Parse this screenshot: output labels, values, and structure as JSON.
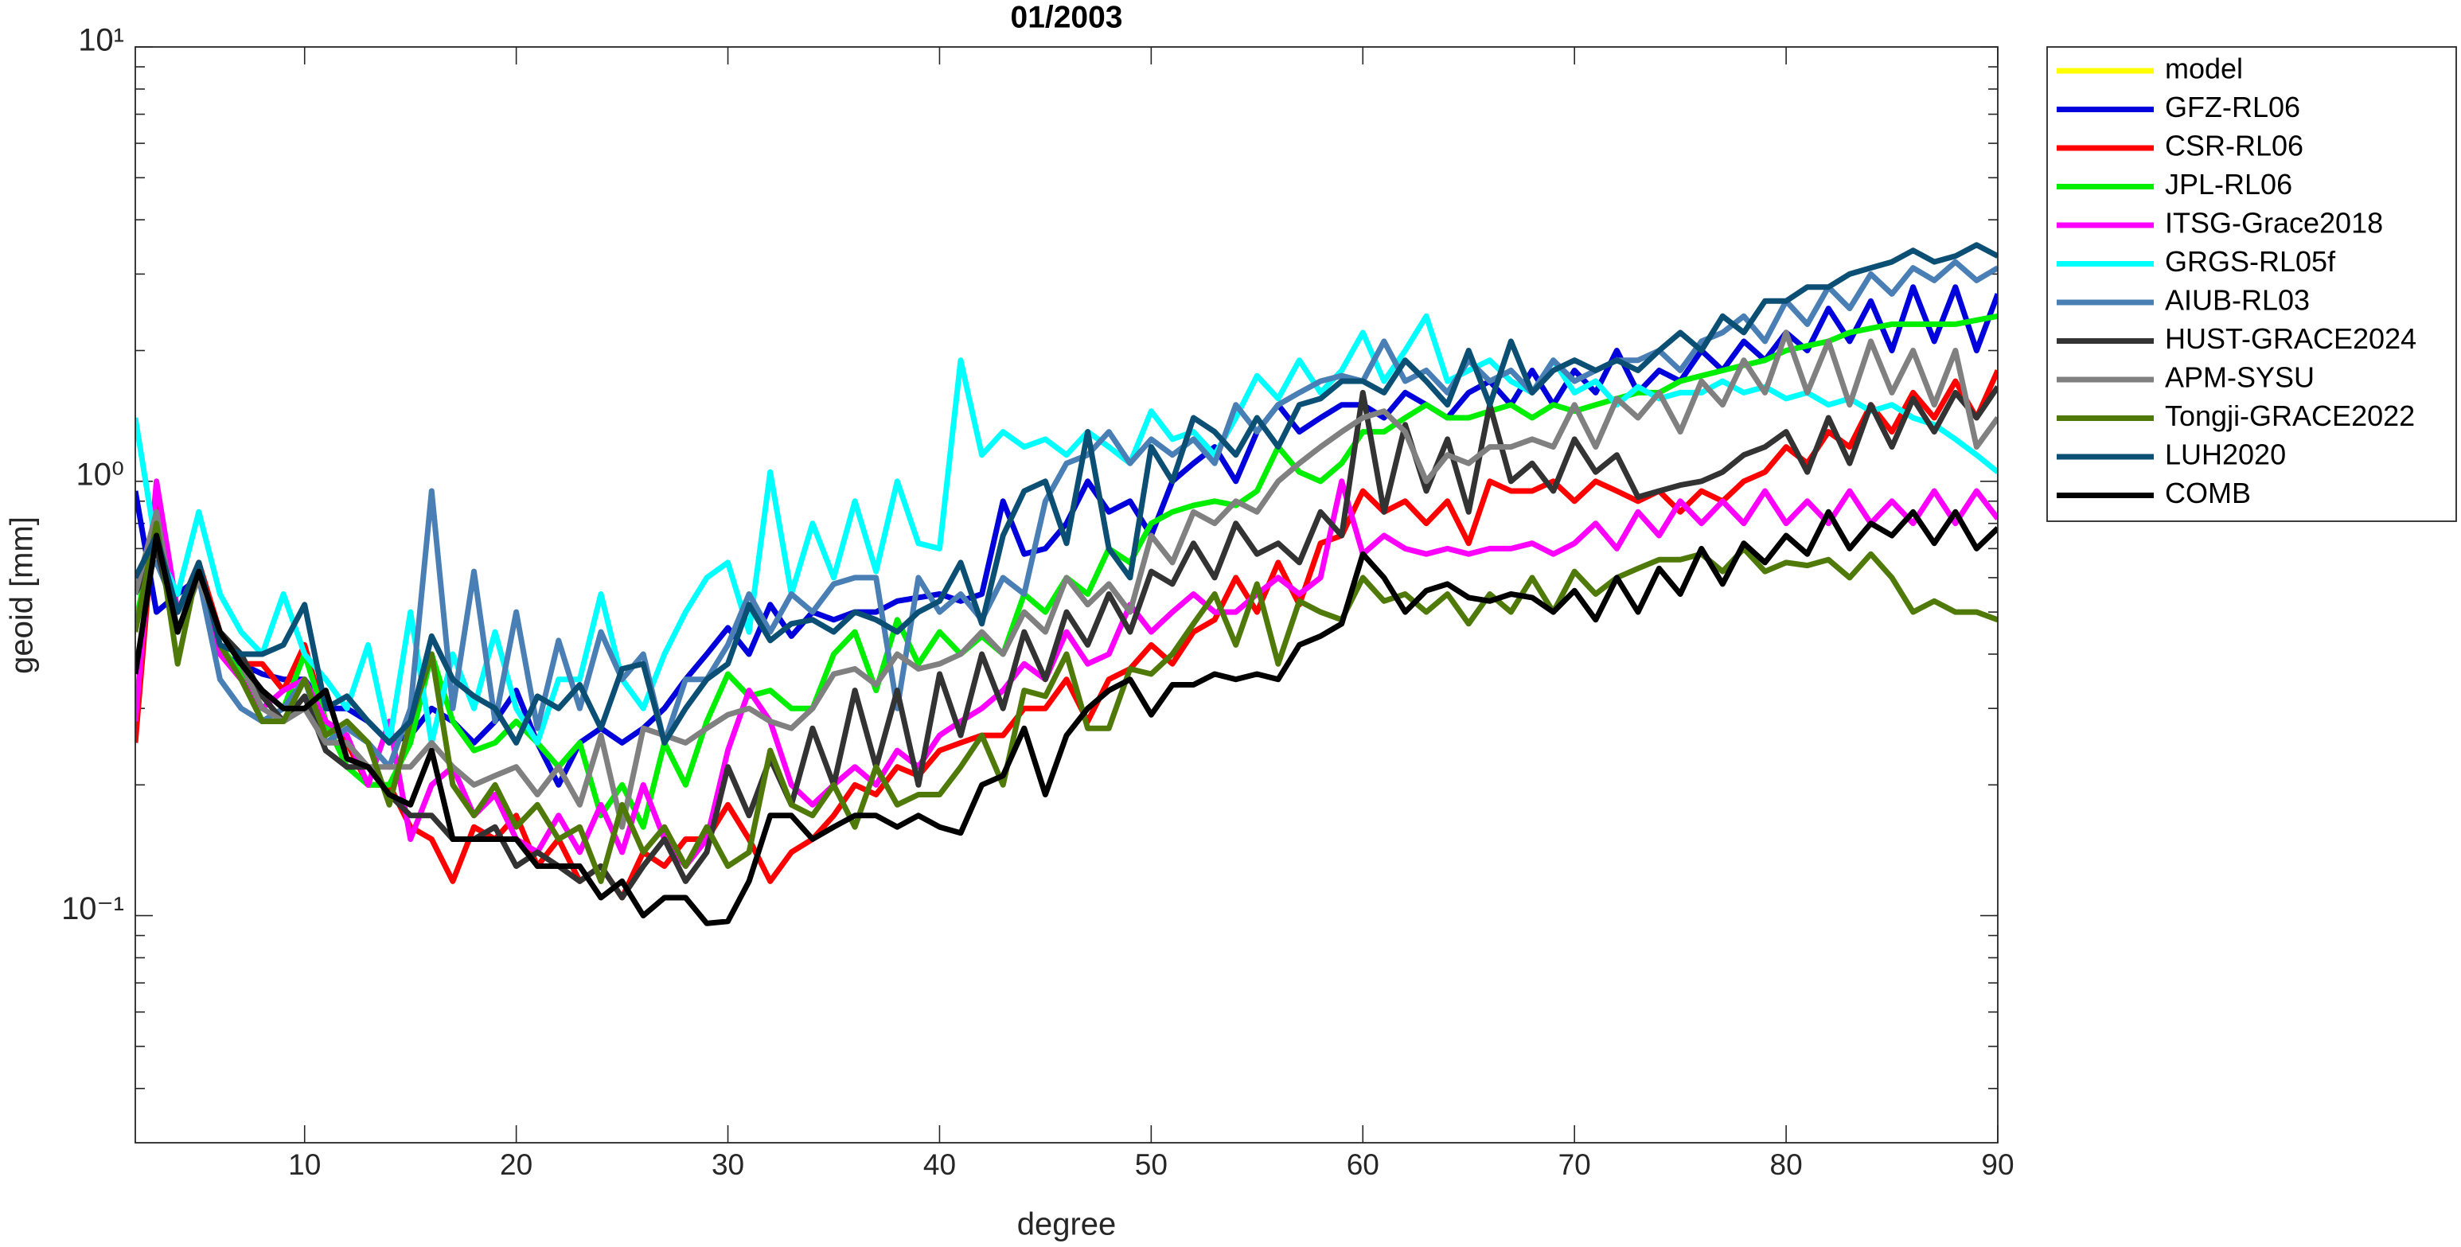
{
  "chart_data": {
    "type": "line",
    "title": "01/2003",
    "x_label": "degree",
    "y_label": "geoid [mm]",
    "log_y": true,
    "grid": false,
    "xlim": [
      2,
      90
    ],
    "xticks": [
      10,
      20,
      30,
      40,
      50,
      60,
      70,
      80,
      90
    ],
    "ylim": [
      0.03,
      10
    ],
    "yticks": [
      {
        "value": 0.1,
        "label": "10⁻¹"
      },
      {
        "value": 1,
        "label": "10⁰"
      },
      {
        "value": 10,
        "label": "10¹"
      }
    ],
    "yminorticks": [
      0.04,
      0.05,
      0.06,
      0.07,
      0.08,
      0.09,
      0.2,
      0.3,
      0.4,
      0.5,
      0.6,
      0.7,
      0.8,
      0.9,
      2,
      3,
      4,
      5,
      6,
      7,
      8,
      9
    ],
    "legend": "outside-right",
    "x": [
      2,
      3,
      4,
      5,
      6,
      7,
      8,
      9,
      10,
      11,
      12,
      13,
      14,
      15,
      16,
      17,
      18,
      19,
      20,
      21,
      22,
      23,
      24,
      25,
      26,
      27,
      28,
      29,
      30,
      31,
      32,
      33,
      34,
      35,
      36,
      37,
      38,
      39,
      40,
      41,
      42,
      43,
      44,
      45,
      46,
      47,
      48,
      49,
      50,
      51,
      52,
      53,
      54,
      55,
      56,
      57,
      58,
      59,
      60,
      61,
      62,
      63,
      64,
      65,
      66,
      67,
      68,
      69,
      70,
      71,
      72,
      73,
      74,
      75,
      76,
      77,
      78,
      79,
      80,
      81,
      82,
      83,
      84,
      85,
      86,
      87,
      88,
      89,
      90
    ],
    "series": [
      {
        "name": "model",
        "color": "#ffff00",
        "values": [
          null,
          null,
          null,
          null,
          null,
          null,
          null,
          null,
          null,
          null,
          null,
          null,
          null,
          null,
          null,
          null,
          null,
          null,
          null,
          null,
          null,
          null,
          null,
          null,
          null,
          null,
          null,
          null,
          null,
          null,
          null,
          null,
          null,
          null,
          null,
          null,
          null,
          null,
          null,
          null,
          null,
          null,
          null,
          null,
          null,
          null,
          null,
          null,
          null,
          null,
          null,
          null,
          null,
          null,
          null,
          null,
          null,
          null,
          null,
          null,
          null,
          null,
          null,
          null,
          null,
          null,
          null,
          null,
          null,
          null,
          null,
          null,
          null,
          null,
          null,
          null,
          null,
          null,
          null,
          null,
          null,
          null,
          null,
          null,
          null,
          null,
          null,
          null,
          null
        ]
      },
      {
        "name": "GFZ-RL06",
        "color": "#0000dd",
        "values": [
          0.95,
          0.5,
          0.55,
          0.6,
          0.4,
          0.38,
          0.36,
          0.35,
          0.35,
          0.3,
          0.3,
          0.28,
          0.25,
          0.26,
          0.3,
          0.28,
          0.25,
          0.28,
          0.33,
          0.25,
          0.2,
          0.25,
          0.27,
          0.25,
          0.27,
          0.3,
          0.35,
          0.4,
          0.46,
          0.4,
          0.52,
          0.44,
          0.5,
          0.48,
          0.5,
          0.5,
          0.53,
          0.54,
          0.55,
          0.53,
          0.55,
          0.9,
          0.68,
          0.7,
          0.8,
          1.0,
          0.85,
          0.9,
          0.75,
          1.0,
          1.1,
          1.2,
          1.0,
          1.3,
          1.5,
          1.3,
          1.4,
          1.5,
          1.5,
          1.4,
          1.6,
          1.5,
          1.4,
          1.6,
          1.7,
          1.5,
          1.8,
          1.5,
          1.8,
          1.6,
          2.0,
          1.6,
          1.8,
          1.7,
          2.0,
          1.8,
          2.1,
          1.9,
          2.2,
          2.0,
          2.5,
          2.1,
          2.6,
          2.0,
          2.8,
          2.1,
          2.8,
          2.0,
          2.7
        ]
      },
      {
        "name": "CSR-RL06",
        "color": "#ff0000",
        "values": [
          0.25,
          0.95,
          0.5,
          0.65,
          0.45,
          0.38,
          0.38,
          0.33,
          0.42,
          0.28,
          0.25,
          0.2,
          0.2,
          0.16,
          0.15,
          0.12,
          0.16,
          0.15,
          0.17,
          0.13,
          0.15,
          0.12,
          0.13,
          0.11,
          0.14,
          0.13,
          0.15,
          0.15,
          0.18,
          0.15,
          0.12,
          0.14,
          0.15,
          0.17,
          0.2,
          0.19,
          0.22,
          0.21,
          0.24,
          0.25,
          0.26,
          0.26,
          0.3,
          0.3,
          0.35,
          0.28,
          0.35,
          0.37,
          0.42,
          0.38,
          0.45,
          0.48,
          0.6,
          0.5,
          0.65,
          0.52,
          0.72,
          0.75,
          0.95,
          0.85,
          0.9,
          0.8,
          0.9,
          0.72,
          1.0,
          0.95,
          0.95,
          1.0,
          0.9,
          1.0,
          0.95,
          0.9,
          0.95,
          0.85,
          0.95,
          0.9,
          1.0,
          1.05,
          1.2,
          1.1,
          1.3,
          1.2,
          1.5,
          1.3,
          1.6,
          1.4,
          1.7,
          1.4,
          1.8
        ]
      },
      {
        "name": "JPL-RL06",
        "color": "#00ee00",
        "values": [
          0.47,
          0.8,
          0.45,
          0.62,
          0.42,
          0.36,
          0.28,
          0.3,
          0.4,
          0.28,
          0.22,
          0.2,
          0.2,
          0.25,
          0.4,
          0.28,
          0.24,
          0.25,
          0.28,
          0.25,
          0.22,
          0.25,
          0.17,
          0.2,
          0.16,
          0.25,
          0.2,
          0.28,
          0.36,
          0.32,
          0.33,
          0.3,
          0.3,
          0.4,
          0.45,
          0.33,
          0.48,
          0.38,
          0.45,
          0.4,
          0.44,
          0.4,
          0.55,
          0.5,
          0.6,
          0.55,
          0.7,
          0.65,
          0.8,
          0.85,
          0.88,
          0.9,
          0.88,
          0.95,
          1.2,
          1.05,
          1.0,
          1.1,
          1.3,
          1.3,
          1.4,
          1.5,
          1.4,
          1.4,
          1.45,
          1.5,
          1.4,
          1.5,
          1.45,
          1.5,
          1.55,
          1.6,
          1.6,
          1.7,
          1.75,
          1.8,
          1.85,
          1.9,
          2.0,
          2.05,
          2.1,
          2.2,
          2.25,
          2.3,
          2.3,
          2.3,
          2.3,
          2.35,
          2.4
        ]
      },
      {
        "name": "ITSG-Grace2018",
        "color": "#ff00ff",
        "values": [
          0.28,
          1.0,
          0.5,
          0.6,
          0.4,
          0.35,
          0.3,
          0.33,
          0.35,
          0.28,
          0.26,
          0.2,
          0.28,
          0.15,
          0.2,
          0.22,
          0.17,
          0.19,
          0.15,
          0.14,
          0.17,
          0.14,
          0.18,
          0.14,
          0.2,
          0.15,
          0.13,
          0.15,
          0.24,
          0.33,
          0.28,
          0.2,
          0.18,
          0.2,
          0.22,
          0.2,
          0.24,
          0.22,
          0.26,
          0.28,
          0.3,
          0.33,
          0.38,
          0.35,
          0.45,
          0.38,
          0.4,
          0.52,
          0.45,
          0.5,
          0.55,
          0.5,
          0.5,
          0.55,
          0.6,
          0.55,
          0.6,
          1.0,
          0.68,
          0.75,
          0.7,
          0.68,
          0.7,
          0.68,
          0.7,
          0.7,
          0.72,
          0.68,
          0.72,
          0.8,
          0.7,
          0.85,
          0.75,
          0.9,
          0.8,
          0.9,
          0.8,
          0.95,
          0.8,
          0.9,
          0.8,
          0.95,
          0.8,
          0.9,
          0.8,
          0.95,
          0.8,
          0.95,
          0.82
        ]
      },
      {
        "name": "GRGS-RL05f",
        "color": "#00ffff",
        "values": [
          1.4,
          0.7,
          0.55,
          0.85,
          0.55,
          0.45,
          0.4,
          0.55,
          0.4,
          0.35,
          0.3,
          0.42,
          0.25,
          0.5,
          0.25,
          0.4,
          0.3,
          0.45,
          0.3,
          0.25,
          0.35,
          0.35,
          0.55,
          0.35,
          0.3,
          0.4,
          0.5,
          0.6,
          0.65,
          0.45,
          1.05,
          0.55,
          0.8,
          0.6,
          0.9,
          0.62,
          1.0,
          0.72,
          0.7,
          1.9,
          1.15,
          1.3,
          1.2,
          1.25,
          1.15,
          1.3,
          1.2,
          1.1,
          1.45,
          1.25,
          1.3,
          1.15,
          1.4,
          1.75,
          1.55,
          1.9,
          1.6,
          1.8,
          2.2,
          1.7,
          2.0,
          2.4,
          1.7,
          1.8,
          1.9,
          1.7,
          1.6,
          1.9,
          1.6,
          1.7,
          1.5,
          1.65,
          1.55,
          1.6,
          1.6,
          1.7,
          1.6,
          1.65,
          1.55,
          1.6,
          1.5,
          1.55,
          1.45,
          1.5,
          1.4,
          1.35,
          1.25,
          1.15,
          1.05
        ]
      },
      {
        "name": "AIUB-RL03",
        "color": "#4a7fb5",
        "values": [
          0.6,
          0.65,
          0.5,
          0.6,
          0.35,
          0.3,
          0.28,
          0.3,
          0.35,
          0.25,
          0.27,
          0.25,
          0.22,
          0.3,
          0.95,
          0.3,
          0.62,
          0.28,
          0.5,
          0.27,
          0.43,
          0.3,
          0.45,
          0.35,
          0.4,
          0.25,
          0.35,
          0.35,
          0.42,
          0.55,
          0.45,
          0.55,
          0.5,
          0.58,
          0.6,
          0.6,
          0.3,
          0.6,
          0.5,
          0.55,
          0.48,
          0.6,
          0.55,
          0.9,
          1.1,
          1.15,
          1.3,
          1.1,
          1.25,
          1.15,
          1.25,
          1.1,
          1.5,
          1.3,
          1.5,
          1.6,
          1.7,
          1.75,
          1.7,
          2.1,
          1.7,
          1.8,
          1.6,
          1.9,
          1.7,
          1.8,
          1.6,
          1.9,
          1.7,
          1.8,
          1.9,
          1.9,
          2.0,
          1.8,
          2.1,
          2.2,
          2.4,
          2.1,
          2.6,
          2.3,
          2.8,
          2.5,
          3.0,
          2.7,
          3.1,
          2.9,
          3.2,
          2.9,
          3.1
        ]
      },
      {
        "name": "HUST-GRACE2024",
        "color": "#333333",
        "values": [
          0.55,
          0.7,
          0.45,
          0.6,
          0.45,
          0.4,
          0.32,
          0.28,
          0.32,
          0.24,
          0.22,
          0.22,
          0.19,
          0.17,
          0.17,
          0.15,
          0.15,
          0.16,
          0.13,
          0.14,
          0.13,
          0.12,
          0.13,
          0.11,
          0.13,
          0.15,
          0.12,
          0.14,
          0.22,
          0.17,
          0.23,
          0.18,
          0.27,
          0.2,
          0.33,
          0.22,
          0.33,
          0.2,
          0.36,
          0.26,
          0.4,
          0.3,
          0.45,
          0.35,
          0.5,
          0.42,
          0.55,
          0.45,
          0.62,
          0.58,
          0.72,
          0.6,
          0.8,
          0.68,
          0.72,
          0.65,
          0.85,
          0.75,
          1.6,
          0.85,
          1.35,
          0.95,
          1.25,
          0.85,
          1.5,
          1.0,
          1.1,
          0.95,
          1.25,
          1.05,
          1.15,
          0.92,
          0.95,
          0.98,
          1.0,
          1.05,
          1.15,
          1.2,
          1.3,
          1.05,
          1.4,
          1.1,
          1.5,
          1.2,
          1.55,
          1.3,
          1.6,
          1.4,
          1.65
        ]
      },
      {
        "name": "APM-SYSU",
        "color": "#808080",
        "values": [
          0.55,
          0.85,
          0.45,
          0.6,
          0.45,
          0.38,
          0.3,
          0.28,
          0.3,
          0.25,
          0.25,
          0.22,
          0.22,
          0.22,
          0.25,
          0.22,
          0.2,
          0.21,
          0.22,
          0.19,
          0.22,
          0.18,
          0.26,
          0.16,
          0.27,
          0.26,
          0.25,
          0.27,
          0.29,
          0.3,
          0.28,
          0.27,
          0.3,
          0.36,
          0.37,
          0.34,
          0.4,
          0.37,
          0.38,
          0.4,
          0.45,
          0.4,
          0.5,
          0.45,
          0.6,
          0.52,
          0.58,
          0.5,
          0.75,
          0.65,
          0.85,
          0.8,
          0.9,
          0.85,
          1.0,
          1.1,
          1.2,
          1.3,
          1.4,
          1.45,
          1.3,
          1.0,
          1.15,
          1.1,
          1.2,
          1.2,
          1.25,
          1.2,
          1.5,
          1.2,
          1.55,
          1.4,
          1.6,
          1.3,
          1.7,
          1.5,
          1.9,
          1.6,
          2.2,
          1.6,
          2.1,
          1.5,
          2.1,
          1.6,
          2.0,
          1.5,
          2.0,
          1.2,
          1.4
        ]
      },
      {
        "name": "Tongji-GRACE2022",
        "color": "#4f7a0a",
        "values": [
          0.45,
          0.8,
          0.38,
          0.65,
          0.42,
          0.35,
          0.28,
          0.28,
          0.35,
          0.26,
          0.28,
          0.25,
          0.18,
          0.28,
          0.4,
          0.2,
          0.17,
          0.2,
          0.16,
          0.18,
          0.15,
          0.16,
          0.12,
          0.18,
          0.14,
          0.16,
          0.13,
          0.16,
          0.13,
          0.14,
          0.24,
          0.18,
          0.17,
          0.2,
          0.16,
          0.22,
          0.18,
          0.19,
          0.19,
          0.22,
          0.26,
          0.2,
          0.33,
          0.32,
          0.4,
          0.27,
          0.27,
          0.37,
          0.36,
          0.4,
          0.47,
          0.55,
          0.42,
          0.58,
          0.38,
          0.53,
          0.5,
          0.48,
          0.6,
          0.53,
          0.55,
          0.5,
          0.55,
          0.47,
          0.55,
          0.5,
          0.6,
          0.5,
          0.62,
          0.55,
          0.6,
          0.63,
          0.66,
          0.66,
          0.68,
          0.62,
          0.7,
          0.62,
          0.65,
          0.64,
          0.66,
          0.6,
          0.68,
          0.6,
          0.5,
          0.53,
          0.5,
          0.5,
          0.48
        ]
      },
      {
        "name": "LUH2020",
        "color": "#0b4f74",
        "values": [
          0.6,
          0.75,
          0.5,
          0.65,
          0.42,
          0.4,
          0.4,
          0.42,
          0.52,
          0.3,
          0.32,
          0.28,
          0.25,
          0.28,
          0.44,
          0.35,
          0.32,
          0.3,
          0.25,
          0.32,
          0.3,
          0.34,
          0.27,
          0.37,
          0.38,
          0.25,
          0.3,
          0.35,
          0.38,
          0.52,
          0.43,
          0.47,
          0.48,
          0.45,
          0.5,
          0.48,
          0.45,
          0.5,
          0.53,
          0.65,
          0.47,
          0.75,
          0.95,
          1.0,
          0.72,
          1.3,
          0.7,
          0.6,
          1.2,
          1.0,
          1.4,
          1.3,
          1.15,
          1.4,
          1.2,
          1.5,
          1.55,
          1.7,
          1.7,
          1.6,
          1.9,
          1.7,
          1.5,
          2.0,
          1.5,
          2.1,
          1.6,
          1.8,
          1.9,
          1.8,
          1.9,
          1.8,
          2.0,
          2.2,
          2.0,
          2.4,
          2.2,
          2.6,
          2.6,
          2.8,
          2.8,
          3.0,
          3.1,
          3.2,
          3.4,
          3.2,
          3.3,
          3.5,
          3.3
        ]
      },
      {
        "name": "COMB",
        "color": "#000000",
        "values": [
          0.36,
          0.75,
          0.45,
          0.62,
          0.45,
          0.38,
          0.33,
          0.3,
          0.3,
          0.33,
          0.23,
          0.22,
          0.19,
          0.18,
          0.24,
          0.15,
          0.15,
          0.15,
          0.15,
          0.13,
          0.13,
          0.13,
          0.11,
          0.12,
          0.1,
          0.11,
          0.11,
          0.096,
          0.097,
          0.12,
          0.17,
          0.17,
          0.15,
          0.16,
          0.17,
          0.17,
          0.16,
          0.17,
          0.16,
          0.155,
          0.2,
          0.21,
          0.27,
          0.19,
          0.26,
          0.3,
          0.33,
          0.35,
          0.29,
          0.34,
          0.34,
          0.36,
          0.35,
          0.36,
          0.35,
          0.42,
          0.44,
          0.47,
          0.68,
          0.6,
          0.5,
          0.56,
          0.58,
          0.54,
          0.53,
          0.55,
          0.54,
          0.5,
          0.56,
          0.48,
          0.6,
          0.5,
          0.63,
          0.55,
          0.7,
          0.58,
          0.72,
          0.65,
          0.75,
          0.68,
          0.85,
          0.7,
          0.8,
          0.75,
          0.85,
          0.72,
          0.85,
          0.7,
          0.78
        ]
      }
    ]
  }
}
